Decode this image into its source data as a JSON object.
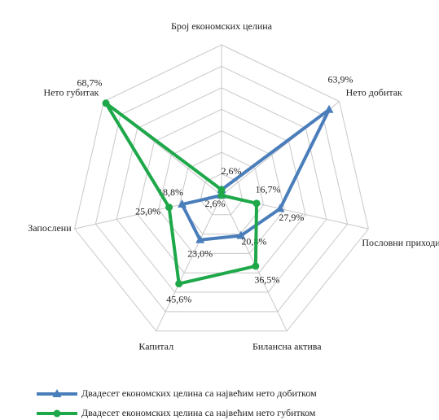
{
  "chart_data": {
    "type": "radar",
    "categories": [
      "Број економских целина",
      "Нето добитак",
      "Пословни приходи",
      "Билансна актива",
      "Капитал",
      "Запослени",
      "Нето губитак"
    ],
    "series": [
      {
        "name": "Двадесет економских целина са највећим нето добитком",
        "color": "#4a7ebb",
        "marker": "triangle",
        "values": [
          2.6,
          63.9,
          27.9,
          20.8,
          23.0,
          18.8,
          0
        ],
        "value_labels": [
          "2,6%",
          "63,9%",
          "27,9%",
          "20,8%",
          "23,0%",
          "18,8%",
          null
        ]
      },
      {
        "name": "Двадесет економских целина са највећим нето губитком",
        "color": "#1ea84a",
        "marker": "circle",
        "values": [
          2.6,
          0,
          16.7,
          36.5,
          45.6,
          25.0,
          68.7
        ],
        "value_labels": [
          "2,6%",
          null,
          "16,7%",
          "36,5%",
          "45,6%",
          "25,0%",
          "68,7%"
        ]
      }
    ],
    "ylim": [
      0,
      70
    ],
    "yticks": [
      0,
      10,
      20,
      30,
      40,
      50,
      60,
      70
    ],
    "grid": true,
    "legend": "bottom"
  }
}
